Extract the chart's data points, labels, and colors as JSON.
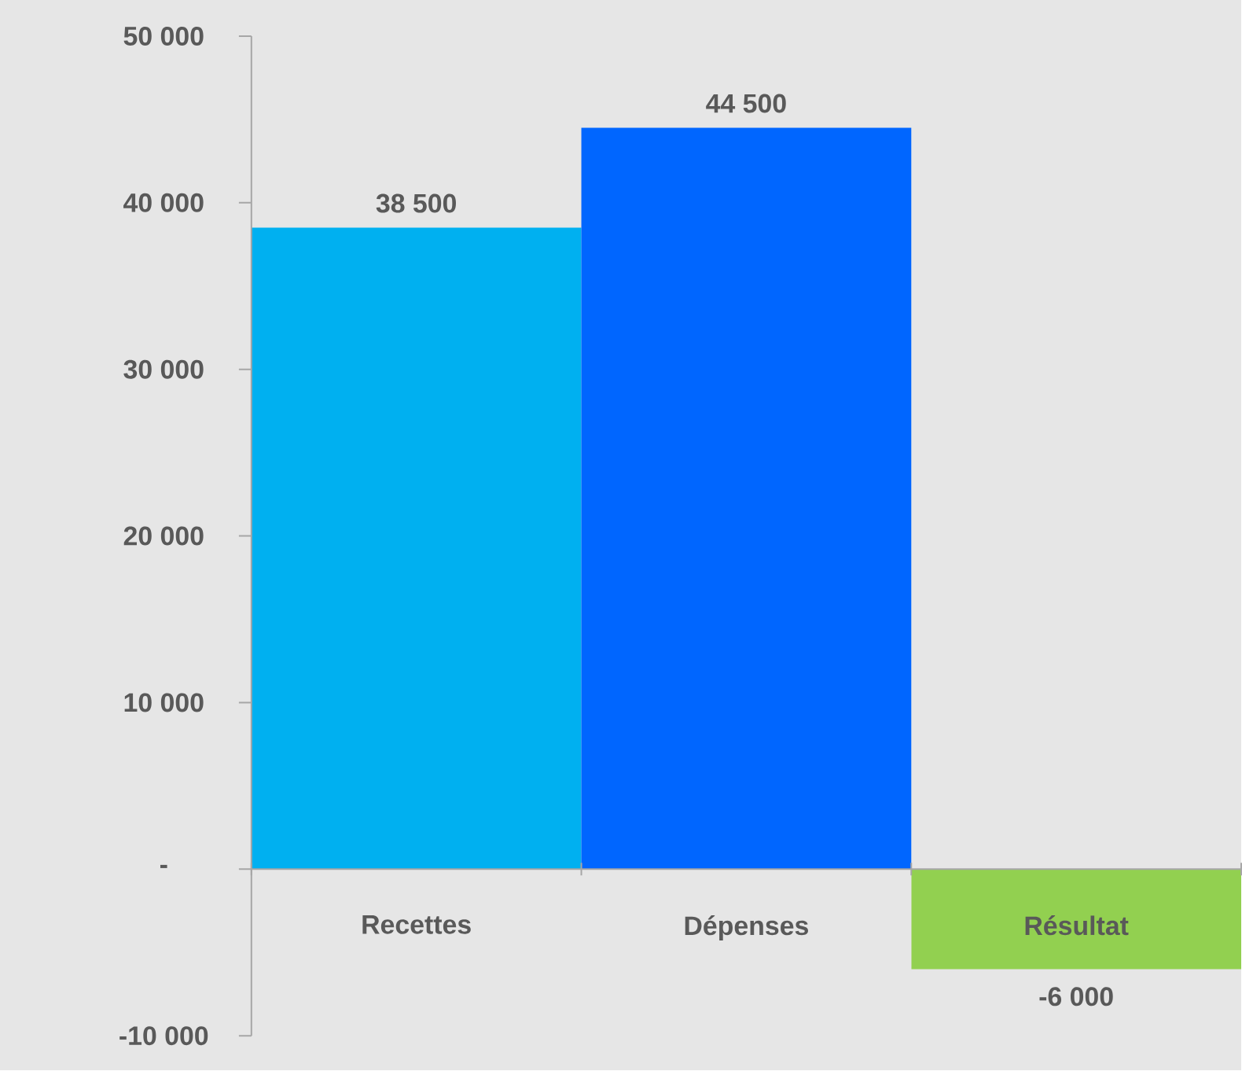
{
  "chart_data": {
    "type": "bar",
    "categories": [
      "Recettes",
      "Dépenses",
      "Résultat"
    ],
    "values": [
      38500,
      44500,
      -6000
    ],
    "colors": [
      "#00b0f0",
      "#0066ff",
      "#92d050"
    ],
    "value_labels": [
      "38 500",
      "44 500",
      "-6 000"
    ],
    "ylim": [
      -10000,
      50000
    ],
    "yticks": [
      {
        "value": -10000,
        "label": "-10 000"
      },
      {
        "value": 0,
        "label": "-"
      },
      {
        "value": 10000,
        "label": "10 000"
      },
      {
        "value": 20000,
        "label": "20 000"
      },
      {
        "value": 30000,
        "label": "30 000"
      },
      {
        "value": 40000,
        "label": "40 000"
      },
      {
        "value": 50000,
        "label": "50 000"
      }
    ]
  }
}
